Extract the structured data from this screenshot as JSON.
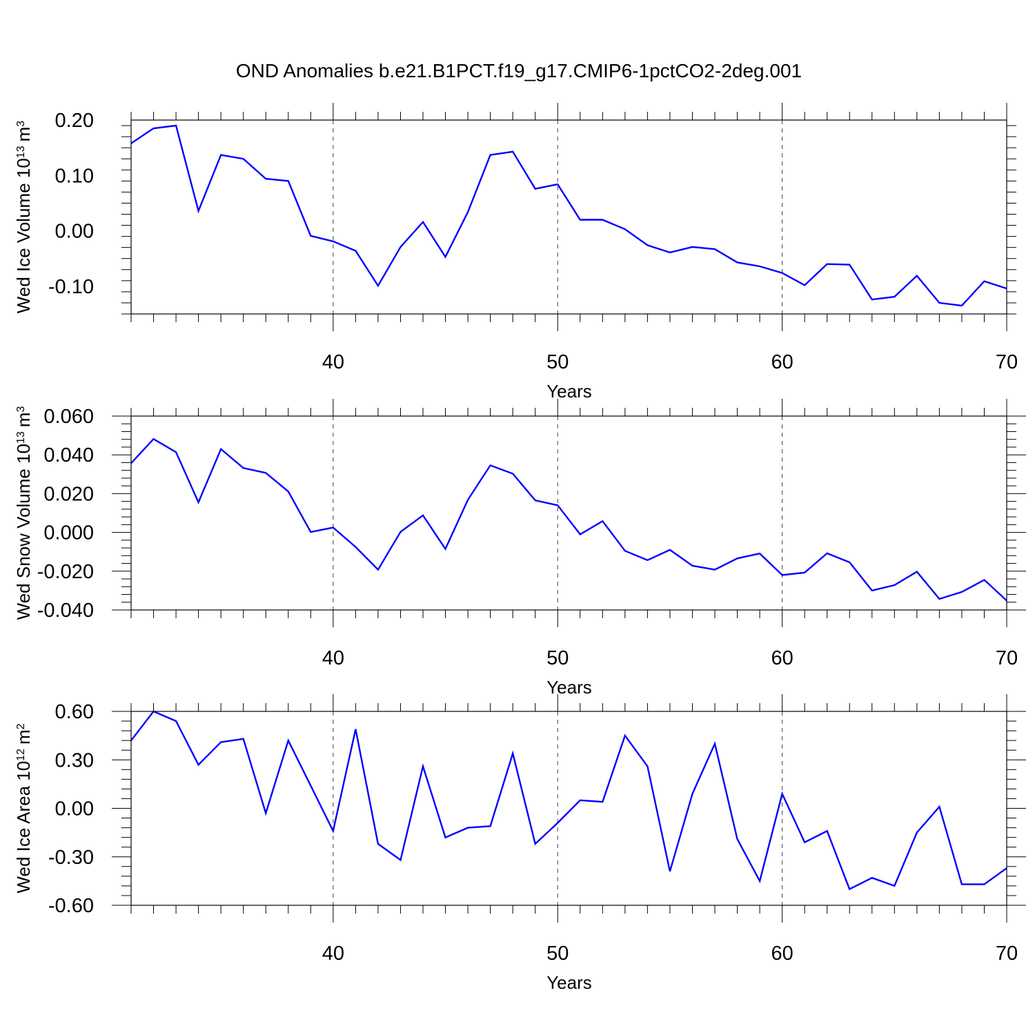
{
  "title": "OND Anomalies b.e21.B1PCT.f19_g17.CMIP6-1pctCO2-2deg.001",
  "chart_data": [
    {
      "type": "line",
      "ylabel": "Wed Ice Volume",
      "unit_base": "10",
      "unit_exp": "13",
      "unit_sym": "m",
      "unit_pow": "3",
      "xlabel": "Years",
      "xlim": [
        31,
        70
      ],
      "ylim": [
        -0.15,
        0.2
      ],
      "yticks": [
        -0.1,
        0.0,
        0.1,
        0.2
      ],
      "ytick_labels": [
        "-0.10",
        "0.00",
        "0.10",
        "0.20"
      ],
      "xticks": [
        40,
        50,
        60,
        70
      ],
      "xtick_labels": [
        "40",
        "50",
        "60",
        "70"
      ],
      "line_color": "#0000ff",
      "x": [
        31,
        32,
        33,
        34,
        35,
        36,
        37,
        38,
        39,
        40,
        41,
        42,
        43,
        44,
        45,
        46,
        47,
        48,
        49,
        50,
        51,
        52,
        53,
        54,
        55,
        56,
        57,
        58,
        59,
        60,
        61,
        62,
        63,
        64,
        65,
        66,
        67,
        68,
        69,
        70
      ],
      "values": [
        0.158,
        0.185,
        0.19,
        0.036,
        0.137,
        0.13,
        0.094,
        0.09,
        -0.009,
        -0.019,
        -0.036,
        -0.099,
        -0.029,
        0.016,
        -0.047,
        0.034,
        0.137,
        0.143,
        0.076,
        0.084,
        0.02,
        0.02,
        0.003,
        -0.026,
        -0.039,
        -0.029,
        -0.033,
        -0.057,
        -0.064,
        -0.076,
        -0.098,
        -0.06,
        -0.061,
        -0.124,
        -0.119,
        -0.081,
        -0.13,
        -0.135,
        -0.091,
        -0.104
      ]
    },
    {
      "type": "line",
      "ylabel": "Wed Snow Volume",
      "unit_base": "10",
      "unit_exp": "13",
      "unit_sym": "m",
      "unit_pow": "3",
      "xlabel": "Years",
      "xlim": [
        31,
        70
      ],
      "ylim": [
        -0.04,
        0.06
      ],
      "yticks": [
        -0.04,
        -0.02,
        0.0,
        0.02,
        0.04,
        0.06
      ],
      "ytick_labels": [
        "-0.040",
        "-0.020",
        "0.000",
        "0.020",
        "0.040",
        "0.060"
      ],
      "xticks": [
        40,
        50,
        60,
        70
      ],
      "xtick_labels": [
        "40",
        "50",
        "60",
        "70"
      ],
      "line_color": "#0000ff",
      "x": [
        31,
        32,
        33,
        34,
        35,
        36,
        37,
        38,
        39,
        40,
        41,
        42,
        43,
        44,
        45,
        46,
        47,
        48,
        49,
        50,
        51,
        52,
        53,
        54,
        55,
        56,
        57,
        58,
        59,
        60,
        61,
        62,
        63,
        64,
        65,
        66,
        67,
        68,
        69,
        70
      ],
      "values": [
        0.0357,
        0.0482,
        0.0414,
        0.0155,
        0.043,
        0.0332,
        0.0307,
        0.0211,
        0.0002,
        0.0025,
        -0.0075,
        -0.0192,
        0.0003,
        0.0088,
        -0.0085,
        0.0168,
        0.0346,
        0.0303,
        0.0165,
        0.014,
        -0.001,
        0.0058,
        -0.0095,
        -0.0143,
        -0.009,
        -0.0172,
        -0.0192,
        -0.0134,
        -0.0109,
        -0.022,
        -0.0207,
        -0.0108,
        -0.0154,
        -0.03,
        -0.0272,
        -0.0203,
        -0.0343,
        -0.0307,
        -0.0245,
        -0.0352
      ]
    },
    {
      "type": "line",
      "ylabel": "Wed Ice Area",
      "unit_base": "10",
      "unit_exp": "12",
      "unit_sym": "m",
      "unit_pow": "2",
      "xlabel": "Years",
      "xlim": [
        31,
        70
      ],
      "ylim": [
        -0.6,
        0.6
      ],
      "yticks": [
        -0.6,
        -0.3,
        0.0,
        0.3,
        0.6
      ],
      "ytick_labels": [
        "-0.60",
        "-0.30",
        "0.00",
        "0.30",
        "0.60"
      ],
      "xticks": [
        40,
        50,
        60,
        70
      ],
      "xtick_labels": [
        "40",
        "50",
        "60",
        "70"
      ],
      "line_color": "#0000ff",
      "x": [
        31,
        32,
        33,
        34,
        35,
        36,
        37,
        38,
        39,
        40,
        41,
        42,
        43,
        44,
        45,
        46,
        47,
        48,
        49,
        50,
        51,
        52,
        53,
        54,
        55,
        56,
        57,
        58,
        59,
        60,
        61,
        62,
        63,
        64,
        65,
        66,
        67,
        68,
        69,
        70
      ],
      "values": [
        0.42,
        0.6,
        0.54,
        0.27,
        0.41,
        0.43,
        -0.03,
        0.42,
        0.14,
        -0.14,
        0.49,
        -0.22,
        -0.32,
        0.26,
        -0.18,
        -0.12,
        -0.11,
        0.34,
        -0.22,
        -0.09,
        0.05,
        0.04,
        0.45,
        0.26,
        -0.39,
        0.09,
        0.4,
        -0.19,
        -0.45,
        0.09,
        -0.21,
        -0.14,
        -0.5,
        -0.43,
        -0.48,
        -0.15,
        0.01,
        -0.47,
        -0.47,
        -0.37
      ]
    }
  ]
}
